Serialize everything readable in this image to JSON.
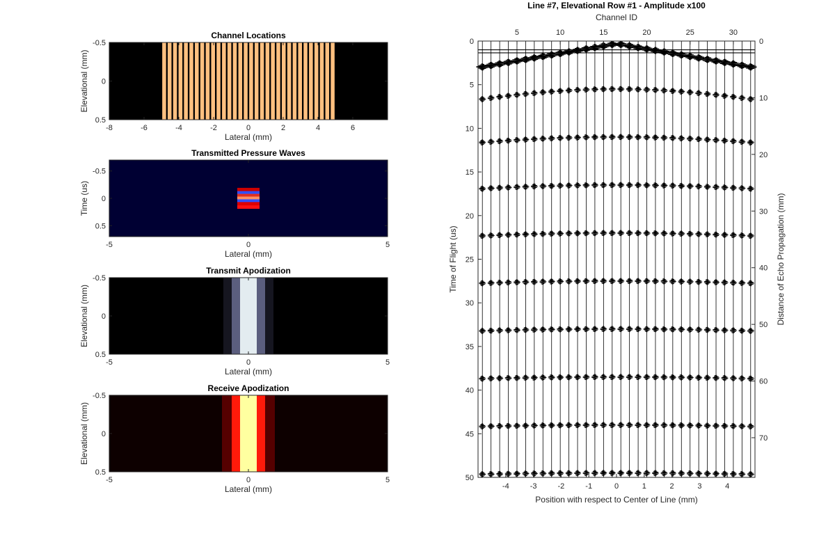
{
  "chart_data": [
    {
      "id": "channel_locations",
      "type": "heatmap",
      "title": "Channel Locations",
      "xlabel": "Lateral (mm)",
      "ylabel": "Elevational (mm)",
      "xlim": [
        -8,
        8
      ],
      "ylim": [
        -0.5,
        0.5
      ],
      "y_reversed": true,
      "xticks": [
        -8,
        -6,
        -4,
        -2,
        0,
        2,
        4,
        6
      ],
      "yticks": [
        -0.5,
        0,
        0.5
      ],
      "background_color": "#000000",
      "element_color": "#ffc080",
      "element_count": 32,
      "element_pitch_mm": 0.3125,
      "element_width_mm": 0.22,
      "array_span_mm": [
        -5,
        5
      ]
    },
    {
      "id": "transmitted_pressure_waves",
      "type": "heatmap",
      "title": "Transmitted Pressure Waves",
      "xlabel": "Lateral (mm)",
      "ylabel": "Time (us)",
      "xlim": [
        -5,
        5
      ],
      "ylim": [
        -0.7,
        0.7
      ],
      "y_reversed": true,
      "xticks": [
        -5,
        0,
        5
      ],
      "yticks": [
        -0.5,
        0,
        0.5
      ],
      "background_color": "#000033",
      "lateral_extent_mm": [
        -0.4,
        0.4
      ],
      "bands": [
        {
          "t": -0.16,
          "color": "#cc0000"
        },
        {
          "t": -0.1,
          "color": "#3050ff"
        },
        {
          "t": -0.05,
          "color": "#e03020"
        },
        {
          "t": 0.0,
          "color": "#ff9060"
        },
        {
          "t": 0.05,
          "color": "#3050ff"
        },
        {
          "t": 0.1,
          "color": "#dd0000"
        },
        {
          "t": 0.16,
          "color": "#ff1010"
        }
      ]
    },
    {
      "id": "transmit_apodization",
      "type": "heatmap",
      "title": "Transmit Apodization",
      "xlabel": "Lateral (mm)",
      "ylabel": "Elevational (mm)",
      "xlim": [
        -5,
        5
      ],
      "ylim": [
        -0.5,
        0.5
      ],
      "y_reversed": true,
      "xticks": [
        -5,
        0,
        5
      ],
      "yticks": [
        -0.5,
        0,
        0.5
      ],
      "background_color": "#000000",
      "columns": [
        {
          "x0": -0.9,
          "x1": -0.6,
          "color": "#161620"
        },
        {
          "x0": -0.6,
          "x1": -0.3,
          "color": "#5b5e7e"
        },
        {
          "x0": -0.3,
          "x1": 0.3,
          "color": "#e3ecf0"
        },
        {
          "x0": 0.3,
          "x1": 0.6,
          "color": "#5b5e7e"
        },
        {
          "x0": 0.6,
          "x1": 0.9,
          "color": "#161620"
        }
      ]
    },
    {
      "id": "receive_apodization",
      "type": "heatmap",
      "title": "Receive Apodization",
      "xlabel": "Lateral (mm)",
      "ylabel": "Elevational (mm)",
      "xlim": [
        -5,
        5
      ],
      "ylim": [
        -0.5,
        0.5
      ],
      "y_reversed": true,
      "xticks": [
        -5,
        0,
        5
      ],
      "yticks": [
        -0.5,
        0,
        0.5
      ],
      "background_color": "#0d0000",
      "columns": [
        {
          "x0": -0.95,
          "x1": -0.6,
          "color": "#550000"
        },
        {
          "x0": -0.6,
          "x1": -0.3,
          "color": "#ff1a0a"
        },
        {
          "x0": -0.3,
          "x1": 0.3,
          "color": "#ffffa0"
        },
        {
          "x0": 0.3,
          "x1": 0.6,
          "color": "#ff1a0a"
        },
        {
          "x0": 0.6,
          "x1": 0.95,
          "color": "#550000"
        }
      ]
    },
    {
      "id": "rf_traces",
      "type": "line",
      "title": "Line #7, Elevational Row #1 - Amplitude x100",
      "xlabel": "Position with respect to Center of Line (mm)",
      "ylabel": "Time of Flight (us)",
      "x2label": "Channel ID",
      "y2label": "Distance of Echo Propagation (mm)",
      "xlim": [
        -5,
        5
      ],
      "ylim": [
        0,
        50
      ],
      "y_reversed": true,
      "xticks": [
        -4,
        -3,
        -2,
        -1,
        0,
        1,
        2,
        3,
        4
      ],
      "yticks": [
        0,
        5,
        10,
        15,
        20,
        25,
        30,
        35,
        40,
        45,
        50
      ],
      "x2ticks": [
        5,
        10,
        15,
        20,
        25,
        30
      ],
      "y2ticks": [
        0,
        10,
        20,
        30,
        40,
        50,
        60,
        70
      ],
      "y2lim": [
        0,
        77
      ],
      "channel_count": 32,
      "channel_pitch_mm": 0.3125,
      "trace_color": "#000000",
      "echo_times_at_center_us": [
        0,
        5.5,
        11,
        16.5,
        22,
        27.5,
        33,
        38.5,
        44,
        49.5
      ],
      "initial_reflection_us": [
        1.0,
        1.35
      ]
    }
  ]
}
